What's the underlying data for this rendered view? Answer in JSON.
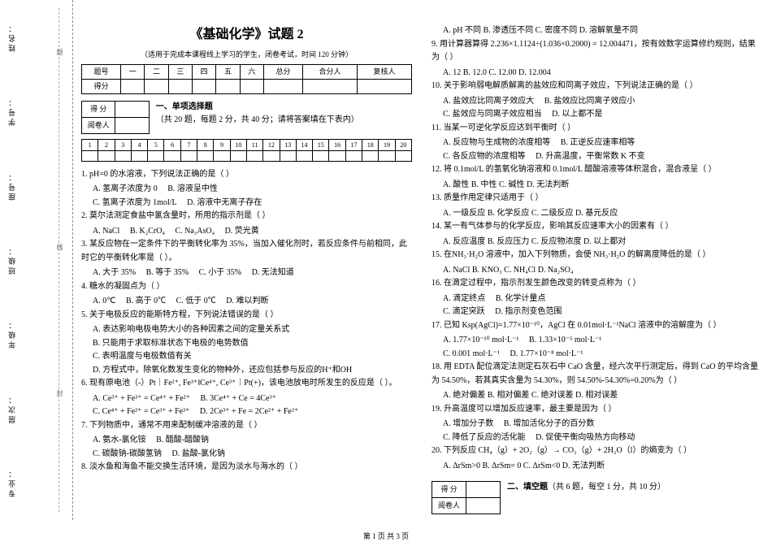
{
  "binding": {
    "labels": [
      "姓名：",
      "学号：",
      "座号：",
      "班级：",
      "年级：",
      "层次：",
      "专业："
    ],
    "dashNote1": "封",
    "dashNote2": "线",
    "dashNote3": "题"
  },
  "header": {
    "title": "《基础化学》试题 2",
    "subtitle": "（适用于完成本课程线上学习的学生，闭卷考试，时间 120 分钟）",
    "cols": [
      "题号",
      "一",
      "二",
      "三",
      "四",
      "五",
      "六",
      "总分",
      "合分人",
      "复核人"
    ],
    "row2": "得分"
  },
  "scorebox": {
    "r1": "得  分",
    "r2": "阅卷人"
  },
  "sectionA": {
    "title": "一、单项选择题",
    "desc": "（共 20 题，每题 2 分，共 40 分；请将答案填在下表内）"
  },
  "ansNums": [
    "1",
    "2",
    "3",
    "4",
    "5",
    "6",
    "7",
    "8",
    "9",
    "10",
    "11",
    "12",
    "13",
    "14",
    "15",
    "16",
    "17",
    "18",
    "19",
    "20"
  ],
  "qL": {
    "q1": "1. pH=0 的水溶液，下列说法正确的是（    ）",
    "q1a": "A. 氢离子浓度为 0",
    "q1b": "B. 溶液呈中性",
    "q1c": "C. 氢离子浓度为 1mol/L",
    "q1d": "D. 溶液中无离子存在",
    "q2": "2. 莫尔法测定食盐中氯含量时，所用的指示剂是（    ）",
    "q2a": "A. NaCl",
    "q2b": "B. K₂CrO₄",
    "q2c": "C. Na₃AsO₄",
    "q2d": "D. 荧光黄",
    "q3": "3. 某反应物在一定条件下的平衡转化率为 35%，当加入催化剂时，若反应条件与前相同，此时它的平衡转化率是（    ）。",
    "q3a": "A. 大于 35%",
    "q3b": "B. 等于 35%",
    "q3c": "C. 小于 35%",
    "q3d": "D. 无法知道",
    "q4": "4. 糖水的凝固点为（    ）",
    "q4a": "A. 0℃",
    "q4b": "B. 高于 0℃",
    "q4c": "C. 低于 0℃",
    "q4d": "D. 难以判断",
    "q5": "5. 关于电极反应的能斯特方程，下列说法错误的是（    ）",
    "q5a": "A. 表达影响电极电势大小的各种因素之间的定量关系式",
    "q5b": "B. 只能用于求取标准状态下电极的电势数值",
    "q5c": "C. 表明温度与电极数值有关",
    "q5d": "D. 方程式中，除氧化数发生变化的物种外，还应包括参与反应的H⁺和OH",
    "q6": "6. 现有原电池（-）Pt｜Fe²⁺, Fe³⁺‖Ce⁴⁺, Ce³⁺｜Pt(+)，该电池放电时所发生的反应是（    ）。",
    "q6a": "A. Ce³⁺ + Fe³⁺ = Ce⁴⁺ + Fe²⁺",
    "q6b": "B. 3Ce⁴⁺ + Ce = 4Ce³⁺",
    "q6c": "C. Ce⁴⁺ + Fe²⁺ = Ce³⁺ + Fe³⁺",
    "q6d": "D. 2Ce³⁺ + Fe = 2Ce²⁺ + Fe²⁺",
    "q7": "7. 下列物质中，通常不用来配制缓冲溶液的是（    ）",
    "q7a": "A. 氨水-氯化铵",
    "q7b": "B. 醋酸-醋酸钠",
    "q7c": "C. 碳酸钠-碳酸氢钠",
    "q7d": "D. 盐酸-氯化钠",
    "q8": "8. 淡水鱼和海鱼不能交换生活环境，是因为淡水与海水的（    ）"
  },
  "qR": {
    "q8o": "A. pH 不同    B. 渗透压不同    C. 密度不同    D. 溶解氧量不同",
    "q9": "9. 用计算器算得 2.236×1.1124÷(1.036×0.2000) = 12.004471，按有效数字运算修约规则，结果为（    ）",
    "q9o": "A. 12       B. 12.0       C. 12.00       D. 12.004",
    "q10": "10. 关于影响弱电解质解离的盐效应和同离子效应，下列说法正确的是（    ）",
    "q10a": "A. 盐效应比同离子效应大",
    "q10b": "B. 盐效应比同离子效应小",
    "q10c": "C. 盐效应与同离子效应相当",
    "q10d": "D. 以上都不是",
    "q11": "11. 当某一可逆化学反应达到平衡时（    ）",
    "q11a": "A. 反应物与生成物的浓度相等",
    "q11b": "B. 正逆反应速率相等",
    "q11c": "C. 各反应物的浓度相等",
    "q11d": "D. 升高温度，平衡常数 K 不变",
    "q12": "12. 将 0.1mol/L 的氢氧化钠溶液和 0.1mol/L 醋酸溶液等体积混合，混合液呈（    ）",
    "q12o": "A. 酸性       B. 中性       C. 碱性       D. 无法判断",
    "q13": "13. 质量作用定律只适用于（    ）",
    "q13o": "A. 一级反应    B. 化学反应    C. 二级反应    D. 基元反应",
    "q14": "14. 某一有气体参与的化学反应，影响其反应速率大小的因素有（    ）",
    "q14o": "A. 反应温度    B. 反应压力    C. 反应物浓度    D. 以上都对",
    "q15": "15. 在NH₃·H₂O 溶液中，加入下列物质，会使 NH₃·H₂O 的解离度降低的是（    ）",
    "q15o": "A. NaCl     B. KNO₃     C. NH₄Cl     D. Na₂SO₄",
    "q16": "16. 在滴定过程中，指示剂发生颜色改变的转变点称为（    ）",
    "q16a": "A. 滴定终点",
    "q16b": "B. 化学计量点",
    "q16c": "C. 滴定突跃",
    "q16d": "D. 指示剂变色范围",
    "q17": "17. 已知 Ksp(AgCl)=1.77×10⁻¹⁰，AgCl 在 0.01mol·L⁻¹NaCl 溶液中的溶解度为（    ）",
    "q17a": "A. 1.77×10⁻¹⁰ mol·L⁻¹",
    "q17b": "B. 1.33×10⁻⁵ mol·L⁻¹",
    "q17c": "C. 0.001 mol·L⁻¹",
    "q17d": "D. 1.77×10⁻⁸ mol·L⁻¹",
    "q18": "18. 用 EDTA 配位滴定法测定石灰石中 CaO 含量，经六次平行测定后，得到 CaO 的平均含量为 54.50%，若其真实含量为 54.30%，则 54.50%-54.30%=0.20%为（    ）",
    "q18o": "A. 绝对偏差    B. 相对偏差    C. 绝对误差    D. 相对误差",
    "q19": "19. 升高温度可以增加反应速率，最主要是因为（    ）",
    "q19a": "A. 增加分子数",
    "q19b": "B. 增加活化分子的百分数",
    "q19c": "C. 降低了反应的活化能",
    "q19d": "D. 促使平衡向吸热方向移动",
    "q20": "20. 下列反应 CH₄（g）+ 2O₂（g）→ CO₂（g）+ 2H₂O（l）的熵变为（    ）",
    "q20o": "A. ΔrSm>0    B. ΔrSm= 0    C. ΔrSm<0    D. 无法判断"
  },
  "sectionB": {
    "title": "二、填空题",
    "desc": "（共 6 题，每空 1 分，共 10 分）"
  },
  "footer": "第 1 页 共 3 页"
}
